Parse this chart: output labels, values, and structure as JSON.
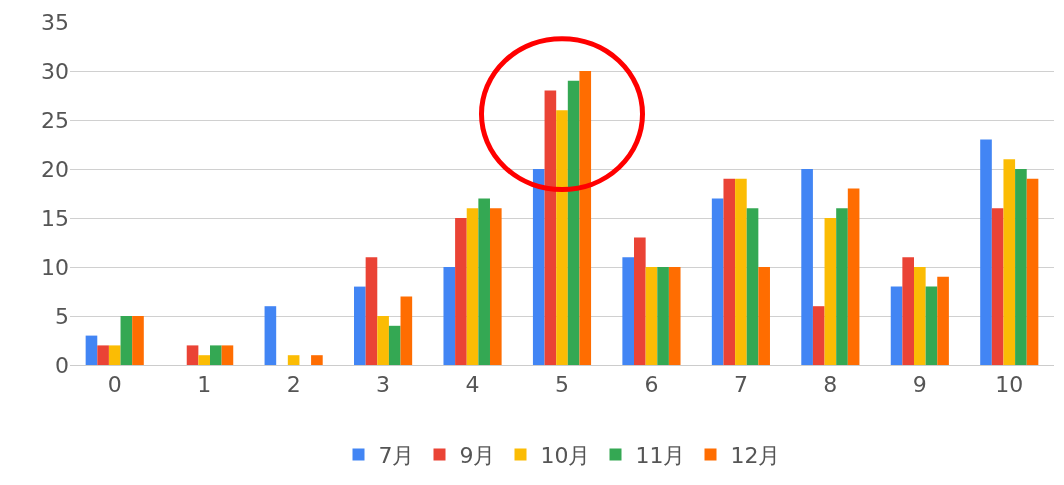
{
  "chart_data": {
    "type": "bar",
    "categories": [
      "0",
      "1",
      "2",
      "3",
      "4",
      "5",
      "6",
      "7",
      "8",
      "9",
      "10"
    ],
    "series": [
      {
        "name": "7月",
        "color": "#4285f4",
        "values": [
          3,
          0,
          6,
          8,
          10,
          20,
          11,
          17,
          20,
          8,
          23
        ]
      },
      {
        "name": "9月",
        "color": "#ea4335",
        "values": [
          2,
          2,
          0,
          11,
          15,
          28,
          13,
          19,
          6,
          11,
          16
        ]
      },
      {
        "name": "10月",
        "color": "#fbbc04",
        "values": [
          2,
          1,
          1,
          5,
          16,
          26,
          10,
          19,
          15,
          10,
          21
        ]
      },
      {
        "name": "11月",
        "color": "#34a853",
        "values": [
          5,
          2,
          0,
          4,
          17,
          29,
          10,
          16,
          16,
          8,
          20
        ]
      },
      {
        "name": "12月",
        "color": "#ff6d01",
        "values": [
          5,
          2,
          1,
          7,
          16,
          30,
          10,
          10,
          18,
          9,
          19
        ]
      }
    ],
    "ylim": [
      0,
      35
    ],
    "yticks": [
      0,
      5,
      10,
      15,
      20,
      25,
      30,
      35
    ],
    "grid": "y",
    "legend": "bottom"
  }
}
